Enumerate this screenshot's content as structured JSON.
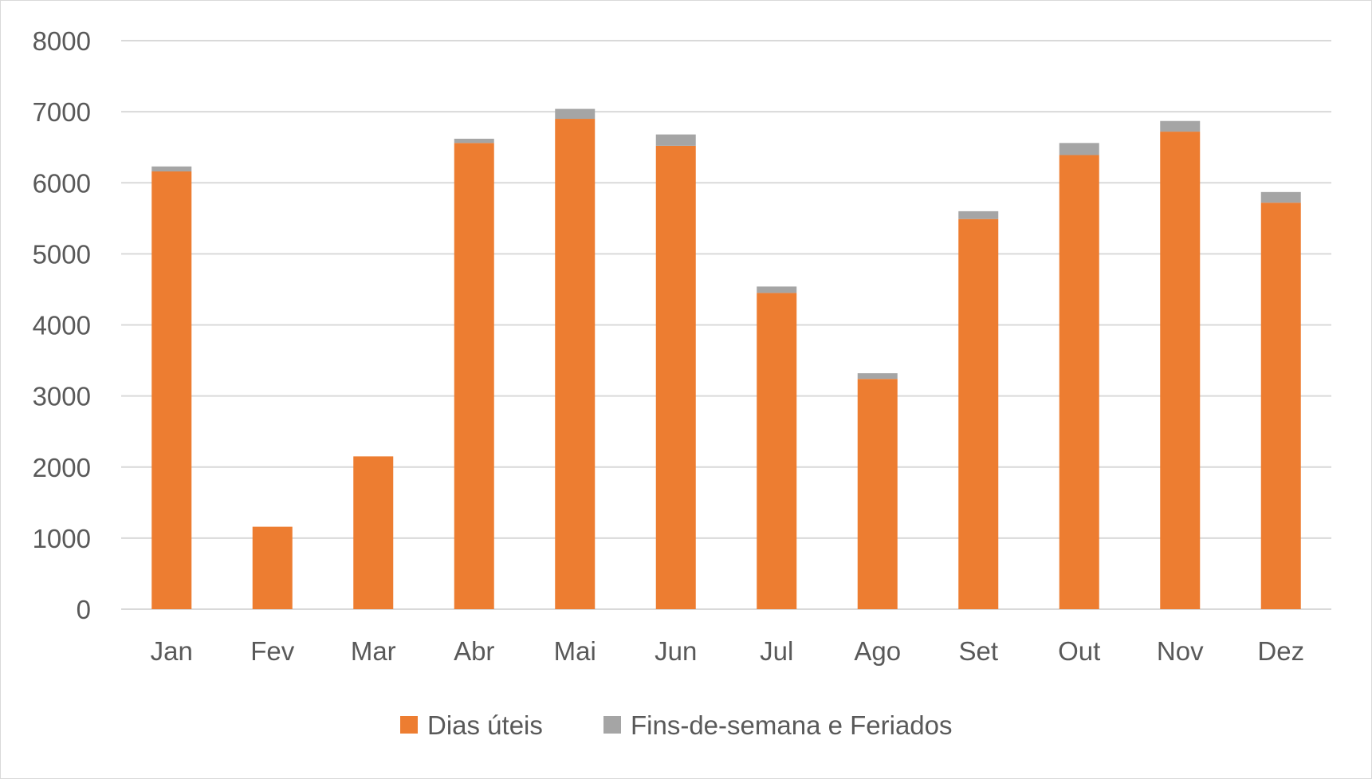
{
  "chart_data": {
    "type": "bar",
    "stacked": true,
    "categories": [
      "Jan",
      "Fev",
      "Mar",
      "Abr",
      "Mai",
      "Jun",
      "Jul",
      "Ago",
      "Set",
      "Out",
      "Nov",
      "Dez"
    ],
    "series": [
      {
        "name": "Dias úteis",
        "color": "#ED7D31",
        "values": [
          6160,
          1160,
          2150,
          6560,
          6900,
          6520,
          4450,
          3240,
          5490,
          6390,
          6720,
          5720
        ]
      },
      {
        "name": "Fins-de-semana e Feriados",
        "color": "#A5A5A5",
        "values": [
          70,
          0,
          0,
          60,
          140,
          160,
          90,
          80,
          110,
          170,
          150,
          150
        ]
      }
    ],
    "ylim": [
      0,
      8000
    ],
    "yticks": [
      "0",
      "1000",
      "2000",
      "3000",
      "4000",
      "5000",
      "6000",
      "7000",
      "8000"
    ],
    "grid": true,
    "gridline_color": "#d9d9d9",
    "legend_position": "bottom",
    "title": "",
    "xlabel": "",
    "ylabel": ""
  }
}
